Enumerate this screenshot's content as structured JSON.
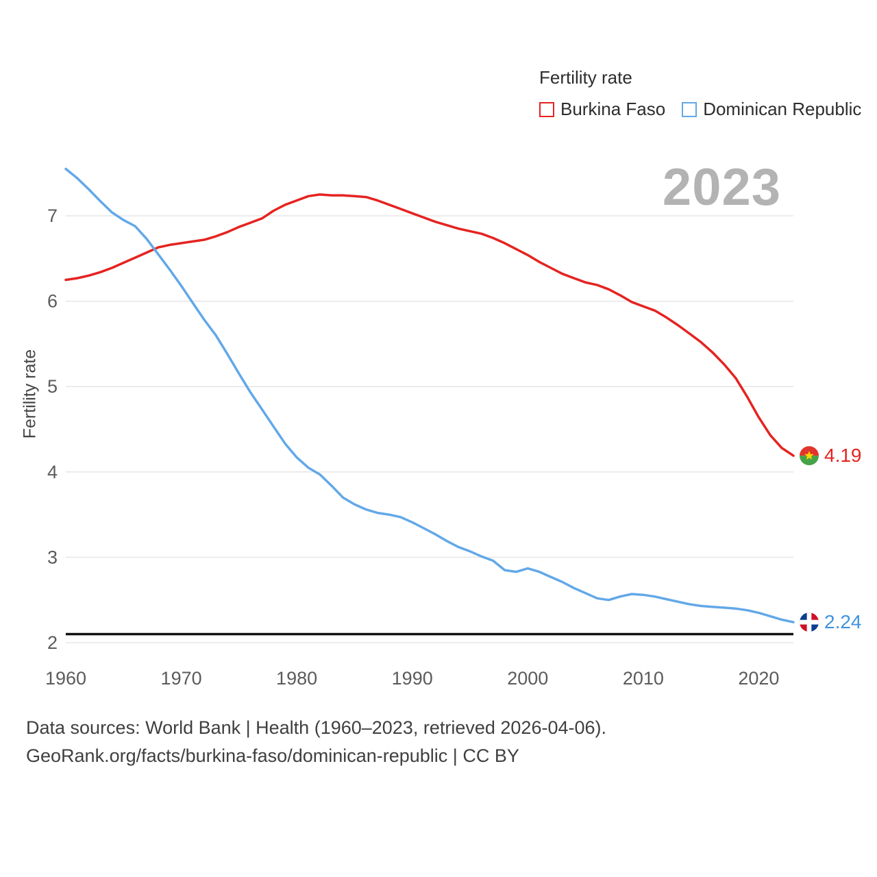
{
  "legend": {
    "title": "Fertility rate",
    "items": [
      {
        "label": "Burkina Faso",
        "color": "#e52320"
      },
      {
        "label": "Dominican Republic",
        "color": "#62a8e8"
      }
    ]
  },
  "watermark": "2023",
  "axes": {
    "y_label": "Fertility rate",
    "y_ticks": [
      2,
      3,
      4,
      5,
      6,
      7
    ],
    "x_ticks": [
      1960,
      1970,
      1980,
      1990,
      2000,
      2010,
      2020
    ]
  },
  "end_labels": [
    {
      "value": "4.19",
      "color": "#e52320",
      "flag": "burkina-faso"
    },
    {
      "value": "2.24",
      "color": "#4094dd",
      "flag": "dominican-republic"
    }
  ],
  "footer": {
    "line1": "Data sources: World Bank | Health (1960–2023, retrieved 2026-04-06).",
    "line2": "GeoRank.org/facts/burkina-faso/dominican-republic | CC BY"
  },
  "chart_data": {
    "type": "line",
    "title": "Fertility rate",
    "ylabel": "Fertility rate",
    "xlim": [
      1960,
      2023
    ],
    "ylim": [
      2,
      7.7
    ],
    "grid": "horizontal",
    "legend_position": "top-right",
    "x": [
      1960,
      1961,
      1962,
      1963,
      1964,
      1965,
      1966,
      1967,
      1968,
      1969,
      1970,
      1971,
      1972,
      1973,
      1974,
      1975,
      1976,
      1977,
      1978,
      1979,
      1980,
      1981,
      1982,
      1983,
      1984,
      1985,
      1986,
      1987,
      1988,
      1989,
      1990,
      1991,
      1992,
      1993,
      1994,
      1995,
      1996,
      1997,
      1998,
      1999,
      2000,
      2001,
      2002,
      2003,
      2004,
      2005,
      2006,
      2007,
      2008,
      2009,
      2010,
      2011,
      2012,
      2013,
      2014,
      2015,
      2016,
      2017,
      2018,
      2019,
      2020,
      2021,
      2022,
      2023
    ],
    "series": [
      {
        "name": "Burkina Faso",
        "color": "#e52320",
        "end_value": 4.19,
        "values": [
          6.25,
          6.27,
          6.3,
          6.34,
          6.39,
          6.45,
          6.51,
          6.57,
          6.63,
          6.66,
          6.68,
          6.7,
          6.72,
          6.76,
          6.81,
          6.87,
          6.92,
          6.97,
          7.06,
          7.13,
          7.18,
          7.23,
          7.25,
          7.24,
          7.24,
          7.23,
          7.22,
          7.18,
          7.13,
          7.08,
          7.03,
          6.98,
          6.93,
          6.89,
          6.85,
          6.82,
          6.79,
          6.74,
          6.68,
          6.61,
          6.54,
          6.46,
          6.39,
          6.32,
          6.27,
          6.22,
          6.19,
          6.14,
          6.07,
          5.99,
          5.94,
          5.89,
          5.81,
          5.72,
          5.62,
          5.52,
          5.4,
          5.26,
          5.1,
          4.88,
          4.64,
          4.43,
          4.28,
          4.19
        ]
      },
      {
        "name": "Dominican Republic",
        "color": "#62a8e8",
        "end_value": 2.24,
        "values": [
          7.55,
          7.44,
          7.31,
          7.17,
          7.04,
          6.95,
          6.88,
          6.73,
          6.55,
          6.37,
          6.18,
          5.98,
          5.78,
          5.6,
          5.38,
          5.15,
          4.93,
          4.73,
          4.53,
          4.33,
          4.17,
          4.05,
          3.97,
          3.84,
          3.7,
          3.62,
          3.56,
          3.52,
          3.5,
          3.47,
          3.41,
          3.34,
          3.27,
          3.19,
          3.12,
          3.07,
          3.01,
          2.96,
          2.85,
          2.83,
          2.87,
          2.83,
          2.77,
          2.71,
          2.64,
          2.58,
          2.52,
          2.5,
          2.54,
          2.57,
          2.56,
          2.54,
          2.51,
          2.48,
          2.45,
          2.43,
          2.42,
          2.41,
          2.4,
          2.38,
          2.35,
          2.31,
          2.27,
          2.24
        ]
      }
    ],
    "reference_line": {
      "value": 2.1,
      "color": "#111111",
      "meaning": "replacement-level-fertility"
    }
  }
}
